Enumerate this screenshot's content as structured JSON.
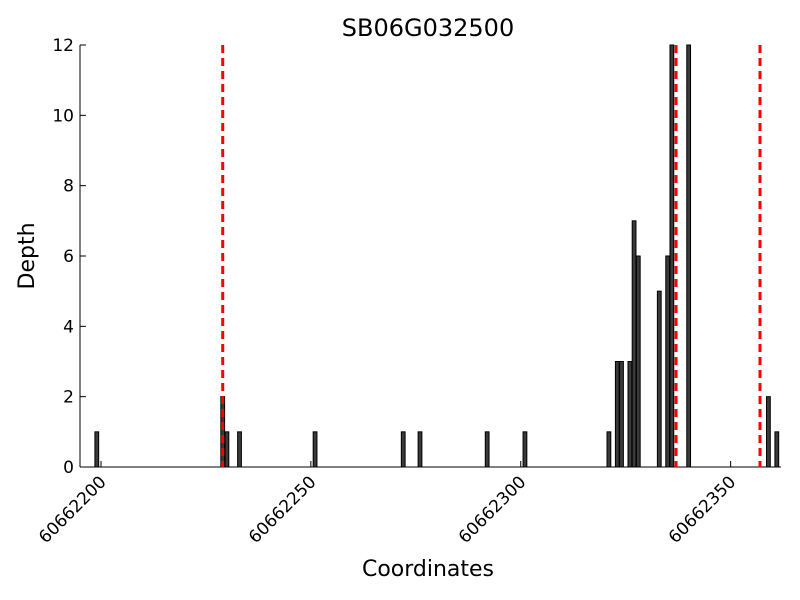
{
  "chart_data": {
    "type": "bar",
    "title": "SB06G032500",
    "xlabel": "Coordinates",
    "ylabel": "Depth",
    "xlim": [
      60662195,
      60662362
    ],
    "ylim": [
      0,
      12
    ],
    "y_ticks": [
      0,
      2,
      4,
      6,
      8,
      10,
      12
    ],
    "x_ticks": [
      60662200,
      60662250,
      60662300,
      60662350
    ],
    "x_tick_labels": [
      "60662200",
      "60662250",
      "60662300",
      "60662350"
    ],
    "bar_color": "#3a3a3a",
    "bar_outline": "#000000",
    "series": [
      {
        "x": [
          60662199,
          60662229,
          60662230,
          60662233,
          60662251,
          60662272,
          60662276,
          60662292,
          60662301,
          60662321,
          60662323,
          60662324,
          60662326,
          60662327,
          60662328,
          60662333,
          60662335,
          60662336,
          60662340,
          60662359,
          60662361
        ],
        "values": [
          1,
          2,
          1,
          1,
          1,
          1,
          1,
          1,
          1,
          1,
          3,
          3,
          3,
          7,
          6,
          5,
          6,
          12,
          12,
          2,
          1
        ]
      }
    ],
    "reference_lines": {
      "color": "#ff0000",
      "style": "dashed",
      "x": [
        60662229,
        60662337,
        60662357
      ]
    },
    "grid": false
  }
}
